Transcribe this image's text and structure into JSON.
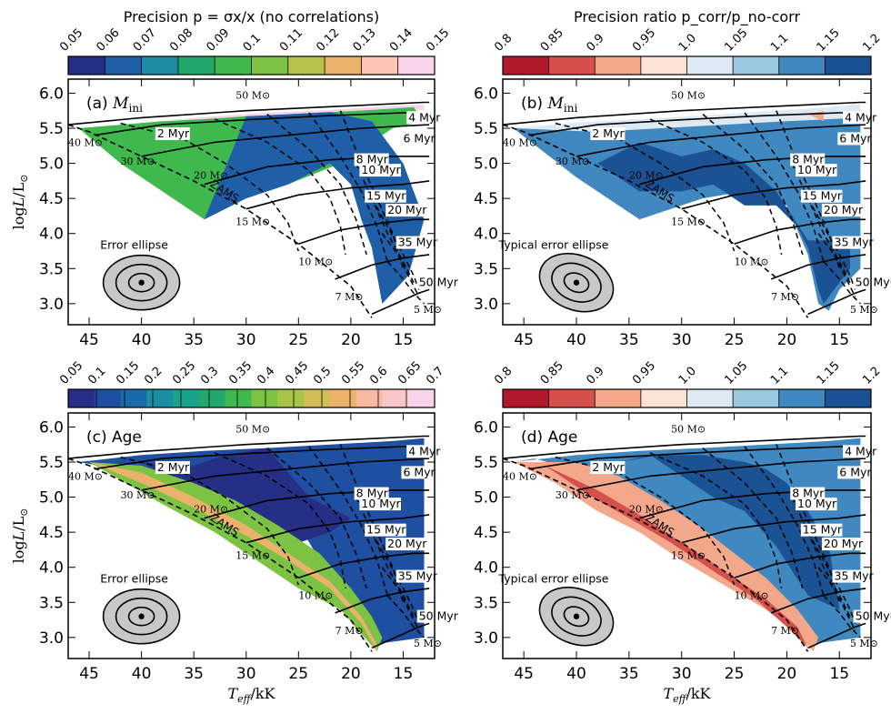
{
  "chart_data": [
    {
      "id": "a",
      "type": "contour",
      "panel_label": "(a)",
      "panel_title": "M_ini",
      "colorbar_title": "Precision p = σx/x (no correlations)",
      "colorbar_ticks": [
        "0.05",
        "0.06",
        "0.07",
        "0.08",
        "0.09",
        "0.1",
        "0.11",
        "0.12",
        "0.13",
        "0.14",
        "0.15"
      ],
      "colorbar_colors": [
        "#262f86",
        "#1f5fa8",
        "#1b8ea3",
        "#22a86a",
        "#3fb94e",
        "#7dc343",
        "#b7c24a",
        "#eab26b",
        "#fbc6b3",
        "#fbd2ec"
      ],
      "fill_regions": [
        {
          "color": "#fbd2ec",
          "teff": [
            37,
            33,
            28,
            22,
            18,
            13,
            13,
            20,
            26,
            32,
            37
          ],
          "logL": [
            5.62,
            5.67,
            5.72,
            5.76,
            5.8,
            5.84,
            5.76,
            5.7,
            5.64,
            5.6,
            5.62
          ]
        },
        {
          "color": "#3fb94e",
          "teff": [
            46,
            42,
            38,
            34,
            30,
            26,
            22,
            18,
            14,
            13,
            16,
            21,
            26,
            30,
            34,
            38,
            42,
            46
          ],
          "logL": [
            5.5,
            5.55,
            5.6,
            5.63,
            5.67,
            5.7,
            5.73,
            5.76,
            5.8,
            5.6,
            5.5,
            5.0,
            4.7,
            4.5,
            4.2,
            4.6,
            5.0,
            5.5
          ]
        },
        {
          "color": "#1f5fa8",
          "teff": [
            34,
            30,
            26,
            22,
            20,
            19,
            18,
            17.5,
            17,
            14.5,
            13,
            15,
            18,
            22,
            26,
            30,
            34
          ],
          "logL": [
            4.2,
            4.5,
            4.7,
            5.0,
            4.7,
            4.2,
            3.8,
            3.4,
            3.0,
            3.4,
            4.2,
            5.0,
            5.6,
            5.73,
            5.7,
            5.67,
            4.2
          ]
        }
      ],
      "ellipse_label": "Error ellipse",
      "error_ellipse": {
        "center": [
          40,
          3.3
        ],
        "tilt_deg": 0,
        "sizes_n": [
          1,
          2,
          3
        ]
      },
      "xlabel": "Teff/kK",
      "ylabel": "log L/L⊙",
      "xlim": [
        47,
        12
      ],
      "ylim": [
        2.7,
        6.2
      ],
      "xticks": [
        45,
        40,
        35,
        30,
        25,
        20,
        15
      ],
      "yticks": [
        3.0,
        3.5,
        4.0,
        4.5,
        5.0,
        5.5,
        6.0
      ]
    },
    {
      "id": "b",
      "type": "contour",
      "panel_label": "(b)",
      "panel_title": "M_ini",
      "colorbar_title": "Precision ratio p_corr/p_no-corr",
      "colorbar_ticks": [
        "0.8",
        "0.85",
        "0.9",
        "0.95",
        "1.0",
        "1.05",
        "1.1",
        "1.15",
        "1.2"
      ],
      "colorbar_colors": [
        "#b0182b",
        "#d6504b",
        "#f3a78b",
        "#fde3d7",
        "#dde9f3",
        "#9ac8e0",
        "#3f88c0",
        "#1b5294"
      ],
      "fill_regions": [
        {
          "color": "#dde9f3",
          "teff": [
            46,
            40,
            34,
            28,
            22,
            16,
            13,
            13,
            20,
            26,
            32,
            38,
            46
          ],
          "logL": [
            5.5,
            5.58,
            5.63,
            5.68,
            5.74,
            5.8,
            5.85,
            5.65,
            5.6,
            5.55,
            5.5,
            5.45,
            5.5
          ]
        },
        {
          "color": "#3f88c0",
          "teff": [
            46,
            38,
            32,
            26,
            20,
            13,
            13,
            15,
            16,
            17,
            18,
            20,
            24,
            28,
            34,
            40,
            46
          ],
          "logL": [
            5.5,
            5.45,
            5.5,
            5.55,
            5.6,
            5.65,
            3.5,
            3.2,
            2.9,
            3.0,
            3.7,
            4.4,
            4.6,
            4.5,
            4.2,
            4.8,
            5.5
          ]
        },
        {
          "color": "#1b5294",
          "teff": [
            38,
            34,
            30,
            27,
            24,
            21,
            19,
            18,
            17,
            16.5,
            14,
            14,
            18,
            21,
            24,
            27,
            30,
            34,
            38
          ],
          "logL": [
            5.0,
            4.6,
            4.6,
            4.7,
            4.4,
            4.4,
            4.1,
            3.8,
            3.2,
            3.0,
            3.5,
            3.9,
            3.9,
            4.6,
            5.0,
            5.2,
            5.1,
            5.3,
            5.0
          ]
        },
        {
          "color": "#f3a78b",
          "teff": [
            18,
            16.5,
            16.5,
            18
          ],
          "logL": [
            5.7,
            5.6,
            5.75,
            5.7
          ]
        }
      ],
      "ellipse_label": "Typical error ellipse",
      "error_ellipse": {
        "center": [
          40,
          3.3
        ],
        "tilt_deg": 22,
        "sizes_n": [
          1,
          2,
          3
        ]
      },
      "xlabel": "Teff/kK",
      "ylabel": "log L/L⊙",
      "xlim": [
        47,
        12
      ],
      "ylim": [
        2.7,
        6.2
      ],
      "xticks": [
        45,
        40,
        35,
        30,
        25,
        20,
        15
      ],
      "yticks": [
        3.0,
        3.5,
        4.0,
        4.5,
        5.0,
        5.5,
        6.0
      ]
    },
    {
      "id": "c",
      "type": "contour",
      "panel_label": "(c)",
      "panel_title": "Age",
      "colorbar_title": "",
      "colorbar_ticks": [
        "0.05",
        "0.1",
        "0.15",
        "0.2",
        "0.25",
        "0.3",
        "0.35",
        "0.4",
        "0.45",
        "0.5",
        "0.55",
        "0.6",
        "0.65",
        "0.7"
      ],
      "colorbar_colors": [
        "#262f86",
        "#1f4fa0",
        "#1b6aa8",
        "#1b8ea3",
        "#1aa38a",
        "#22a86a",
        "#3fb94e",
        "#7dc343",
        "#a8c448",
        "#d3be56",
        "#eab26b",
        "#f9b9a0",
        "#fbc6c8",
        "#fbd2ec"
      ],
      "fill_regions": [
        {
          "color": "#1f4fa0",
          "teff": [
            46,
            40,
            34,
            28,
            22,
            16,
            13,
            13,
            18,
            25,
            32,
            38,
            46
          ],
          "logL": [
            5.5,
            5.6,
            5.66,
            5.7,
            5.75,
            5.8,
            5.84,
            3.0,
            2.9,
            4.6,
            4.9,
            5.3,
            5.5
          ]
        },
        {
          "color": "#262f86",
          "teff": [
            40,
            36,
            32,
            28,
            24,
            20,
            22,
            26,
            30,
            34,
            40
          ],
          "logL": [
            5.5,
            5.4,
            5.6,
            5.7,
            5.0,
            4.7,
            4.5,
            4.3,
            4.6,
            5.0,
            5.5
          ]
        },
        {
          "color": "#7dc343",
          "teff": [
            38,
            33,
            29,
            25,
            21,
            19,
            17.5,
            17,
            18,
            20,
            23,
            27,
            31,
            35,
            40,
            45,
            38
          ],
          "logL": [
            4.9,
            4.5,
            4.1,
            3.7,
            3.4,
            3.05,
            2.8,
            3.0,
            3.3,
            3.7,
            4.2,
            4.6,
            4.95,
            5.2,
            5.45,
            5.5,
            4.9
          ]
        },
        {
          "color": "#eab26b",
          "teff": [
            45,
            40,
            35,
            30,
            26,
            22,
            19,
            17.5,
            17.5,
            19,
            22,
            26,
            30,
            35,
            40,
            45
          ],
          "logL": [
            5.5,
            5.2,
            4.85,
            4.45,
            4.1,
            3.7,
            3.2,
            2.8,
            2.9,
            3.3,
            3.8,
            4.2,
            4.6,
            5.0,
            5.35,
            5.5
          ]
        }
      ],
      "ellipse_label": "Error ellipse",
      "error_ellipse": {
        "center": [
          40,
          3.3
        ],
        "tilt_deg": 0,
        "sizes_n": [
          1,
          2,
          3
        ]
      },
      "xlabel": "Teff/kK",
      "ylabel": "log L/L⊙",
      "xlim": [
        47,
        12
      ],
      "ylim": [
        2.7,
        6.2
      ],
      "xticks": [
        45,
        40,
        35,
        30,
        25,
        20,
        15
      ],
      "yticks": [
        3.0,
        3.5,
        4.0,
        4.5,
        5.0,
        5.5,
        6.0
      ]
    },
    {
      "id": "d",
      "type": "contour",
      "panel_label": "(d)",
      "panel_title": "Age",
      "colorbar_title": "",
      "colorbar_ticks": [
        "0.8",
        "0.85",
        "0.9",
        "0.95",
        "1.0",
        "1.05",
        "1.1",
        "1.15",
        "1.2"
      ],
      "colorbar_colors": [
        "#b0182b",
        "#d6504b",
        "#f3a78b",
        "#fde3d7",
        "#dde9f3",
        "#9ac8e0",
        "#3f88c0",
        "#1b5294"
      ],
      "fill_regions": [
        {
          "color": "#3f88c0",
          "teff": [
            46,
            40,
            34,
            28,
            22,
            16,
            13,
            13,
            18,
            21,
            24,
            27,
            30,
            34,
            38,
            44,
            46
          ],
          "logL": [
            5.5,
            5.6,
            5.66,
            5.7,
            5.75,
            5.8,
            5.84,
            3.0,
            2.9,
            3.4,
            3.8,
            4.2,
            4.6,
            5.0,
            5.3,
            5.55,
            5.5
          ]
        },
        {
          "color": "#1b5294",
          "teff": [
            36,
            32,
            28,
            24,
            22,
            20,
            18,
            16,
            15,
            18,
            21,
            24,
            27,
            30,
            33,
            36
          ],
          "logL": [
            5.5,
            5.6,
            5.6,
            5.5,
            5.4,
            5.2,
            4.8,
            4.3,
            3.4,
            3.6,
            4.3,
            4.8,
            5.0,
            5.3,
            5.6,
            5.5
          ]
        },
        {
          "color": "#f3a78b",
          "teff": [
            46,
            42,
            38,
            34,
            30,
            26,
            22,
            19,
            17.5,
            17,
            19,
            22,
            25,
            28,
            32,
            36,
            40,
            46
          ],
          "logL": [
            5.5,
            5.2,
            4.8,
            4.5,
            4.1,
            3.75,
            3.4,
            3.05,
            2.8,
            3.0,
            3.4,
            3.85,
            4.2,
            4.55,
            4.95,
            5.3,
            5.5,
            5.5
          ]
        },
        {
          "color": "#d6504b",
          "teff": [
            43,
            39,
            35,
            31,
            27,
            23,
            20,
            18,
            19,
            22,
            26,
            30,
            34,
            38,
            43
          ],
          "logL": [
            5.45,
            5.05,
            4.7,
            4.35,
            3.95,
            3.55,
            3.15,
            2.85,
            3.15,
            3.55,
            3.95,
            4.35,
            4.75,
            5.1,
            5.45
          ]
        }
      ],
      "ellipse_label": "Typical error ellipse",
      "error_ellipse": {
        "center": [
          40,
          3.3
        ],
        "tilt_deg": 22,
        "sizes_n": [
          1,
          2,
          3
        ]
      },
      "xlabel": "Teff/kK",
      "ylabel": "log L/L⊙",
      "xlim": [
        47,
        12
      ],
      "ylim": [
        2.7,
        6.2
      ],
      "xticks": [
        45,
        40,
        35,
        30,
        25,
        20,
        15
      ],
      "yticks": [
        3.0,
        3.5,
        4.0,
        4.5,
        5.0,
        5.5,
        6.0
      ]
    }
  ],
  "overlay": {
    "zams": {
      "label": "ZAMS",
      "teff": [
        47,
        45,
        40,
        35,
        30,
        25,
        20,
        18
      ],
      "logL": [
        5.55,
        5.45,
        5.1,
        4.75,
        4.35,
        3.85,
        3.25,
        2.8
      ]
    },
    "tracks": [
      {
        "label": "50 M⊙",
        "label_teff": 31,
        "label_logL": 5.92,
        "teff": [
          47,
          40,
          30,
          20,
          13,
          12.5
        ],
        "logL": [
          5.55,
          5.65,
          5.75,
          5.82,
          5.87,
          5.87
        ]
      },
      {
        "label": "40 M⊙",
        "label_teff": 47,
        "label_logL": 5.25,
        "teff": [
          44.5,
          38,
          30,
          22,
          15,
          12.5
        ],
        "logL": [
          5.4,
          5.55,
          5.62,
          5.68,
          5.72,
          5.73
        ]
      },
      {
        "label": "30 M⊙",
        "label_teff": 42,
        "label_logL": 4.98,
        "teff": [
          40,
          33,
          26,
          19,
          12.5
        ],
        "logL": [
          5.1,
          5.3,
          5.4,
          5.5,
          5.55
        ]
      },
      {
        "label": "20 M⊙",
        "label_teff": 35,
        "label_logL": 4.78,
        "teff": [
          34,
          28,
          22,
          16,
          12.5
        ],
        "logL": [
          4.7,
          4.95,
          5.05,
          5.1,
          5.1
        ]
      },
      {
        "label": "15 M⊙",
        "label_teff": 31,
        "label_logL": 4.12,
        "teff": [
          30,
          25,
          20,
          15,
          12.5
        ],
        "logL": [
          4.35,
          4.55,
          4.65,
          4.7,
          4.75
        ]
      },
      {
        "label": "10 M⊙",
        "label_teff": 25,
        "label_logL": 3.55,
        "teff": [
          25,
          21,
          17,
          14,
          12.5
        ],
        "logL": [
          3.85,
          4.05,
          4.15,
          4.2,
          4.2
        ]
      },
      {
        "label": "7 M⊙",
        "label_teff": 21.5,
        "label_logL": 3.05,
        "teff": [
          21.5,
          18,
          15,
          12.5
        ],
        "logL": [
          3.35,
          3.55,
          3.65,
          3.7
        ]
      },
      {
        "label": "5 M⊙",
        "label_teff": 14,
        "label_logL": 2.87,
        "teff": [
          18,
          15,
          13.5,
          12.5
        ],
        "logL": [
          2.85,
          3.05,
          3.15,
          3.2
        ]
      }
    ],
    "isochrones": [
      {
        "label": "2 Myr",
        "label_teff": 38.5,
        "label_logL": 5.37,
        "teff": [
          42,
          36,
          32,
          28,
          26,
          25
        ],
        "logL": [
          5.57,
          5.35,
          5.0,
          4.55,
          4.15,
          3.75
        ]
      },
      {
        "label": "4 Myr",
        "label_teff": 14.5,
        "label_logL": 5.6,
        "teff": [
          33,
          28,
          24,
          22,
          21,
          20.5
        ],
        "logL": [
          5.63,
          5.3,
          4.9,
          4.5,
          4.1,
          3.7
        ]
      },
      {
        "label": "6 Myr",
        "label_teff": 15,
        "label_logL": 5.3,
        "teff": [
          28,
          24,
          21,
          19.5,
          18.5
        ],
        "logL": [
          5.7,
          5.2,
          4.7,
          4.2,
          3.7
        ]
      },
      {
        "label": "8 Myr",
        "label_teff": 19.5,
        "label_logL": 5.0,
        "teff": [
          24,
          21,
          19,
          17.5,
          16.5
        ],
        "logL": [
          5.72,
          5.1,
          4.6,
          4.1,
          3.6
        ]
      },
      {
        "label": "10 Myr",
        "label_teff": 19,
        "label_logL": 4.85,
        "teff": [
          21,
          19,
          17.5,
          16,
          15
        ],
        "logL": [
          5.75,
          5.0,
          4.5,
          4.0,
          3.5
        ]
      },
      {
        "label": "15 Myr",
        "label_teff": 18.5,
        "label_logL": 4.48,
        "teff": [
          19.5,
          18,
          16.5,
          15,
          14
        ],
        "logL": [
          5.0,
          4.5,
          4.0,
          3.6,
          3.3
        ]
      },
      {
        "label": "20 Myr",
        "label_teff": 16.5,
        "label_logL": 4.28,
        "teff": [
          18,
          16.5,
          15,
          14,
          13.5
        ],
        "logL": [
          4.5,
          4.1,
          3.7,
          3.4,
          3.2
        ]
      },
      {
        "label": "35 Myr",
        "label_teff": 15.5,
        "label_logL": 3.82,
        "teff": [
          17,
          15.5,
          14.5,
          13.5
        ],
        "logL": [
          4.0,
          3.7,
          3.4,
          3.1
        ]
      },
      {
        "label": "50 Myr",
        "label_teff": 13.5,
        "label_logL": 3.25,
        "teff": [
          16.5,
          15,
          14,
          13
        ],
        "logL": [
          3.6,
          3.35,
          3.15,
          3.0
        ]
      }
    ]
  }
}
